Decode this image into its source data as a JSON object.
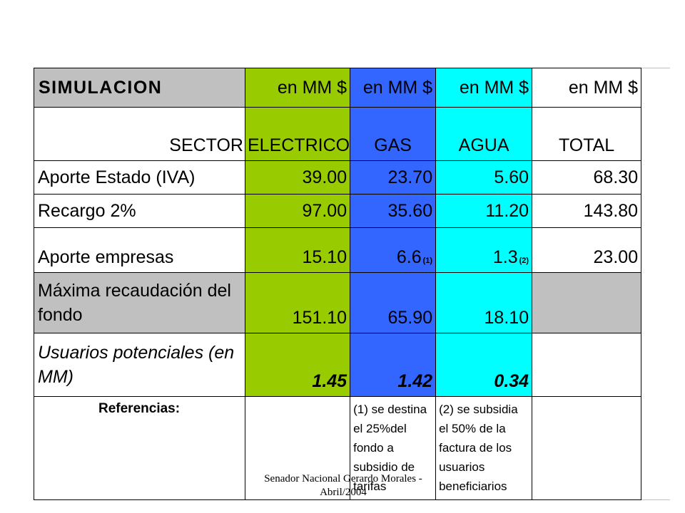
{
  "table": {
    "title": "SIMULACION",
    "header_unit": "en MM $",
    "sector_label": "SECTOR",
    "columns": [
      "ELECTRICO",
      "GAS",
      "AGUA",
      "TOTAL"
    ],
    "rows": [
      {
        "label": "Aporte Estado (IVA)",
        "electrico": "39.00",
        "gas": "23.70",
        "agua": "5.60",
        "total": "68.30"
      },
      {
        "label": "Recargo 2%",
        "electrico": "97.00",
        "gas": "35.60",
        "agua": "11.20",
        "total": "143.80"
      },
      {
        "label": "Aporte empresas",
        "electrico": "15.10",
        "gas": "6.6",
        "gas_note": "(1)",
        "agua": "1.3",
        "agua_note": "(2)",
        "total": "23.00"
      },
      {
        "label_line1": "Máxima recaudación del",
        "label_line2": "fondo",
        "electrico": "151.10",
        "gas": "65.90",
        "agua": "18.10",
        "total": ""
      },
      {
        "label_line1": "Usuarios potenciales (en",
        "label_line2": "MM)",
        "electrico": "1.45",
        "gas": "1.42",
        "agua": "0.34",
        "total": ""
      }
    ],
    "references_label": "Referencias:",
    "reference_notes": [
      [
        "(1) se destina",
        "el 25%del",
        "fondo a",
        "subsidio de",
        "tarifas"
      ],
      [
        "(2) se subsidia",
        "el 50% de la",
        "factura de los",
        "usuarios",
        "beneficiarios"
      ]
    ]
  },
  "footer": {
    "line1": "Senador Nacional Gerardo Morales -",
    "line2": "Abril/2004"
  },
  "colors": {
    "electrico": "#99cc00",
    "gas": "#3366ff",
    "agua": "#00ffff",
    "highlight_grey": "#c0c0c0"
  }
}
